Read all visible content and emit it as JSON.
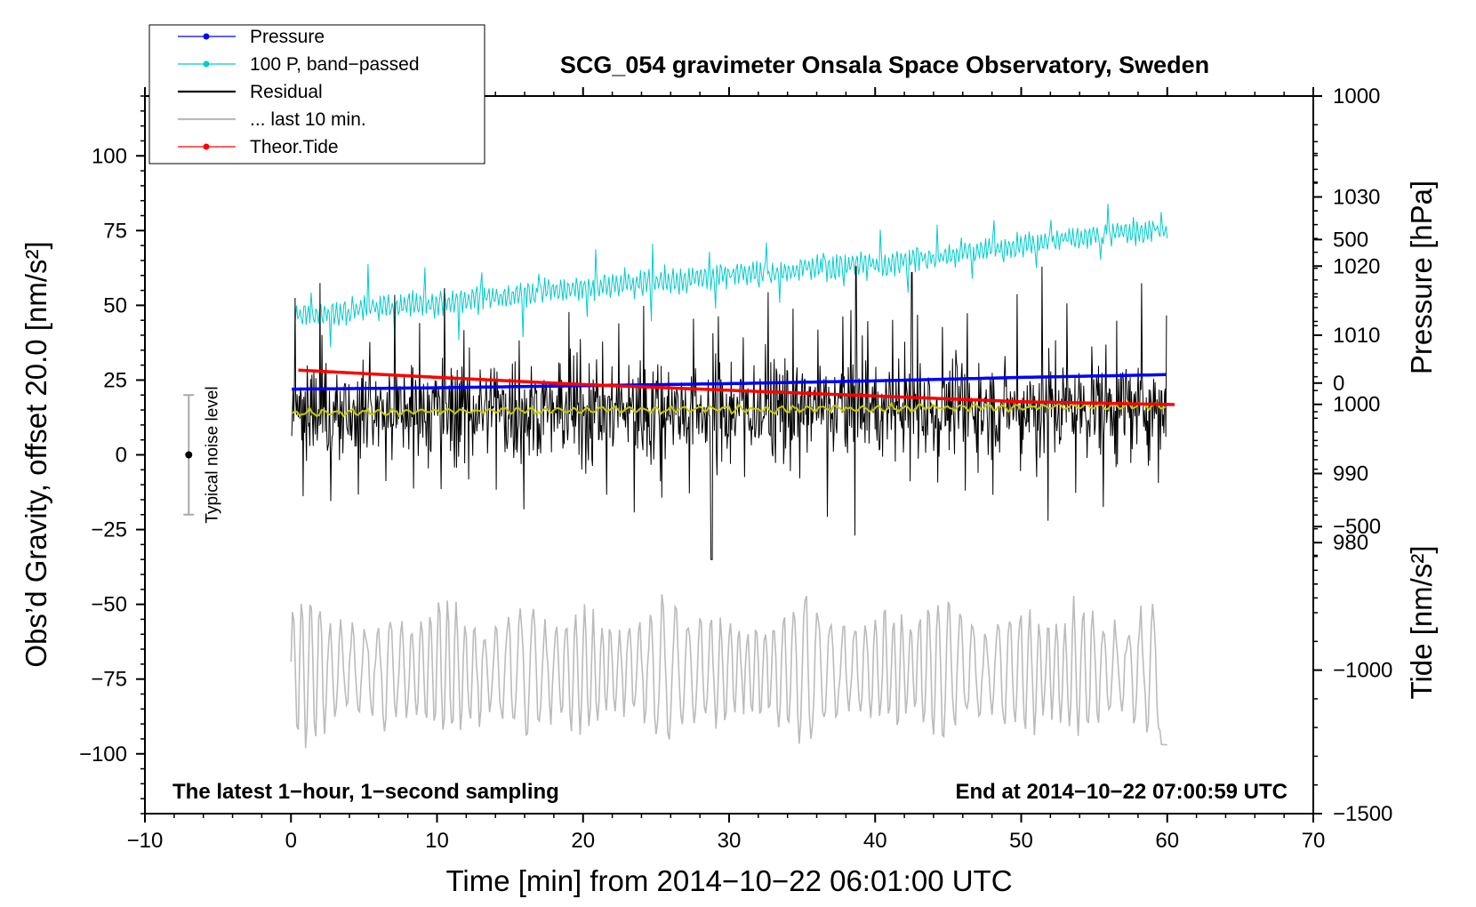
{
  "chart_data": {
    "type": "line",
    "title": "SCG_054 gravimeter Onsala Space Observatory, Sweden",
    "xlabel": "Time [min] from 2014−10−22 06:01:00 UTC",
    "ylabel_left": "Obs’d Gravity, offset 20.0 [nm/s²]",
    "ylabel_right_top": "Pressure [hPa]",
    "ylabel_right_bottom": "Tide [nm/s²]",
    "xlim": [
      -10,
      70
    ],
    "ylim": [
      -120,
      120
    ],
    "xticks": [
      -10,
      0,
      10,
      20,
      30,
      40,
      50,
      60,
      70
    ],
    "xtick_labels": [
      "−10",
      "0",
      "10",
      "20",
      "30",
      "40",
      "50",
      "60",
      "70"
    ],
    "yticks": [
      -100,
      -75,
      -50,
      -25,
      0,
      25,
      50,
      75,
      100
    ],
    "ytick_labels": [
      "−100",
      "−75",
      "−50",
      "−25",
      "0",
      "25",
      "50",
      "75",
      "100"
    ],
    "pressure_axis": {
      "ticks": [
        980,
        990,
        1000,
        1010,
        1020,
        1030
      ],
      "tick_labels": [
        "980",
        "990",
        "1000",
        "1010",
        "1020",
        "1030"
      ],
      "range": [
        940.8,
        1044.6
      ]
    },
    "tide_axis": {
      "ticks": [
        -1500,
        -1000,
        -500,
        0,
        500,
        1000
      ],
      "tick_labels": [
        "−1500",
        "−1000",
        "−500",
        "0",
        "500",
        "1000"
      ],
      "range": [
        -1500,
        1000
      ]
    },
    "legend": [
      {
        "label": "Pressure",
        "color": "#0000ff",
        "marker": true
      },
      {
        "label": "100 P, band−passed",
        "color": "#00cccc",
        "marker": true
      },
      {
        "label": "Residual",
        "color": "#000000",
        "marker": false
      },
      {
        "label": "... last 10 min.",
        "color": "#bbbbbb",
        "marker": false
      },
      {
        "label": "Theor.Tide",
        "color": "#ff0000",
        "marker": true
      }
    ],
    "series": [
      {
        "name": "Pressure",
        "axis": "pressure",
        "color": "#0000ff",
        "x": [
          0,
          10,
          20,
          30,
          40,
          50,
          60
        ],
        "values": [
          1002.2,
          1002.4,
          1002.7,
          1003.0,
          1003.4,
          1003.9,
          1004.3
        ]
      },
      {
        "name": "100 P, band−passed",
        "axis": "left",
        "color": "#00cccc",
        "x": [
          0,
          5,
          10,
          15,
          20,
          25,
          30,
          35,
          40,
          45,
          50,
          55,
          60
        ],
        "values": [
          46,
          49,
          51,
          53,
          56,
          58,
          60,
          62,
          64,
          67,
          70,
          73,
          76
        ]
      },
      {
        "name": "Residual",
        "axis": "left",
        "color": "#000000",
        "x": [
          0,
          10,
          20,
          30,
          40,
          50,
          60
        ],
        "values": [
          14,
          15,
          15,
          15,
          16,
          16,
          16
        ],
        "range": [
          -35,
          63
        ]
      },
      {
        "name": "Residual smoothed",
        "axis": "left",
        "color": "#c8c800",
        "x": [
          0,
          10,
          20,
          30,
          40,
          50,
          60
        ],
        "values": [
          14,
          14.6,
          15,
          15.3,
          15.6,
          16,
          16.3
        ]
      },
      {
        "name": "... last 10 min.",
        "axis": "left",
        "color": "#bbbbbb",
        "x": [
          0,
          60
        ],
        "values": [
          -73,
          -97
        ],
        "range": [
          -110,
          -40
        ]
      },
      {
        "name": "Theor.Tide",
        "axis": "tide",
        "color": "#ff0000",
        "x": [
          0.5,
          10,
          20,
          30,
          40,
          50,
          60.5
        ],
        "values": [
          45,
          20,
          -5,
          -25,
          -45,
          -65,
          -75
        ]
      }
    ],
    "noise_bar": {
      "x": -7,
      "center": 0,
      "half_range": 20,
      "label": "Typical noise level"
    },
    "annotations": [
      {
        "text": "The latest 1−hour, 1−second sampling",
        "position": "bottom-left"
      },
      {
        "text": "End at 2014−10−22 07:00:59 UTC",
        "position": "bottom-right"
      }
    ]
  }
}
